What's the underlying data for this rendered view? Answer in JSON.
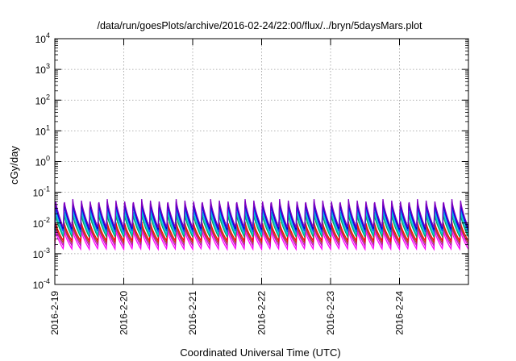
{
  "chart_data": {
    "type": "line",
    "title": "/data/run/goesPlots/archive/2016-02-24/22:00/flux/../bryn/5daysMars.plot",
    "xlabel": "Coordinated Universal Time (UTC)",
    "ylabel": "cGy/day",
    "yscale": "log",
    "ylim": [
      0.0001,
      10000
    ],
    "xlim": [
      0,
      6
    ],
    "grid": true,
    "x_ticks": [
      {
        "pos": 0,
        "label": "2016-2-19"
      },
      {
        "pos": 1,
        "label": "2016-2-20"
      },
      {
        "pos": 2,
        "label": "2016-2-21"
      },
      {
        "pos": 3,
        "label": "2016-2-22"
      },
      {
        "pos": 4,
        "label": "2016-2-23"
      },
      {
        "pos": 5,
        "label": "2016-2-24"
      }
    ],
    "y_ticks": [
      {
        "value": 0.0001,
        "base": "10",
        "exp": "-4"
      },
      {
        "value": 0.001,
        "base": "10",
        "exp": "-3"
      },
      {
        "value": 0.01,
        "base": "10",
        "exp": "-2"
      },
      {
        "value": 0.1,
        "base": "10",
        "exp": "-1"
      },
      {
        "value": 1,
        "base": "10",
        "exp": "0"
      },
      {
        "value": 10,
        "base": "10",
        "exp": "1"
      },
      {
        "value": 100,
        "base": "10",
        "exp": "2"
      },
      {
        "value": 1000,
        "base": "10",
        "exp": "3"
      },
      {
        "value": 10000,
        "base": "10",
        "exp": "4"
      }
    ],
    "cycles_per_day": 8,
    "series": [
      {
        "color": "#ff00ff",
        "low": 0.0014,
        "high": 0.006
      },
      {
        "color": "#cc00cc",
        "low": 0.0018,
        "high": 0.008
      },
      {
        "color": "#a0522d",
        "low": 0.0022,
        "high": 0.009
      },
      {
        "color": "#ff0000",
        "low": 0.0026,
        "high": 0.011
      },
      {
        "color": "#00a060",
        "low": 0.0035,
        "high": 0.02
      },
      {
        "color": "#00cccc",
        "low": 0.004,
        "high": 0.028
      },
      {
        "color": "#0060ff",
        "low": 0.005,
        "high": 0.04
      },
      {
        "color": "#0000cc",
        "low": 0.006,
        "high": 0.05
      },
      {
        "color": "#8000c0",
        "low": 0.007,
        "high": 0.06
      }
    ]
  }
}
